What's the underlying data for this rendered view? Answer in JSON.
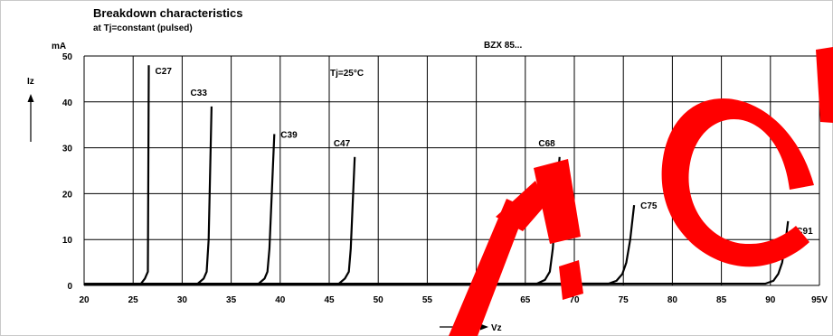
{
  "chart_data": {
    "type": "line",
    "title": "Breakdown characteristics",
    "subtitle": "at Tj=constant (pulsed)",
    "series_label": "BZX 85...",
    "condition": "Tj=25°C",
    "xlabel": "Vz",
    "ylabel": "Iz",
    "y_unit": "mA",
    "x_unit": "V",
    "xlim": [
      20,
      95
    ],
    "ylim": [
      0,
      50
    ],
    "x_ticks": [
      "20",
      "25",
      "30",
      "35",
      "40",
      "45",
      "50",
      "55",
      "60",
      "65",
      "70",
      "75",
      "80",
      "85",
      "90",
      "95V"
    ],
    "y_ticks": [
      "0",
      "10",
      "20",
      "30",
      "40",
      "50"
    ],
    "grid": true,
    "series": [
      {
        "name": "C27",
        "points": [
          [
            20,
            0.3
          ],
          [
            25.8,
            0.4
          ],
          [
            26.2,
            1.5
          ],
          [
            26.5,
            3
          ],
          [
            26.6,
            48
          ]
        ]
      },
      {
        "name": "C33",
        "points": [
          [
            20,
            0.3
          ],
          [
            31.6,
            0.4
          ],
          [
            32.2,
            1.5
          ],
          [
            32.5,
            3
          ],
          [
            32.7,
            10
          ],
          [
            33.0,
            39
          ]
        ]
      },
      {
        "name": "C39",
        "points": [
          [
            20,
            0.3
          ],
          [
            37.8,
            0.4
          ],
          [
            38.4,
            1.5
          ],
          [
            38.7,
            3
          ],
          [
            38.9,
            8
          ],
          [
            39.4,
            33
          ]
        ]
      },
      {
        "name": "C47",
        "points": [
          [
            20,
            0.3
          ],
          [
            46.0,
            0.4
          ],
          [
            46.6,
            1.5
          ],
          [
            47.0,
            3
          ],
          [
            47.2,
            8
          ],
          [
            47.6,
            28
          ]
        ]
      },
      {
        "name": "C68",
        "points": [
          [
            20,
            0.3
          ],
          [
            66.2,
            0.4
          ],
          [
            67.0,
            1.2
          ],
          [
            67.5,
            3
          ],
          [
            67.8,
            8
          ],
          [
            68.5,
            28
          ]
        ]
      },
      {
        "name": "C75",
        "points": [
          [
            20,
            0.3
          ],
          [
            73.5,
            0.4
          ],
          [
            74.3,
            1.0
          ],
          [
            74.9,
            2.5
          ],
          [
            75.3,
            5
          ],
          [
            75.7,
            10
          ],
          [
            76.1,
            17.5
          ]
        ]
      },
      {
        "name": "C91",
        "points": [
          [
            20,
            0.3
          ],
          [
            89.5,
            0.4
          ],
          [
            90.3,
            1.0
          ],
          [
            90.8,
            2.5
          ],
          [
            91.2,
            5
          ],
          [
            91.5,
            9
          ],
          [
            91.8,
            14
          ]
        ]
      }
    ]
  }
}
